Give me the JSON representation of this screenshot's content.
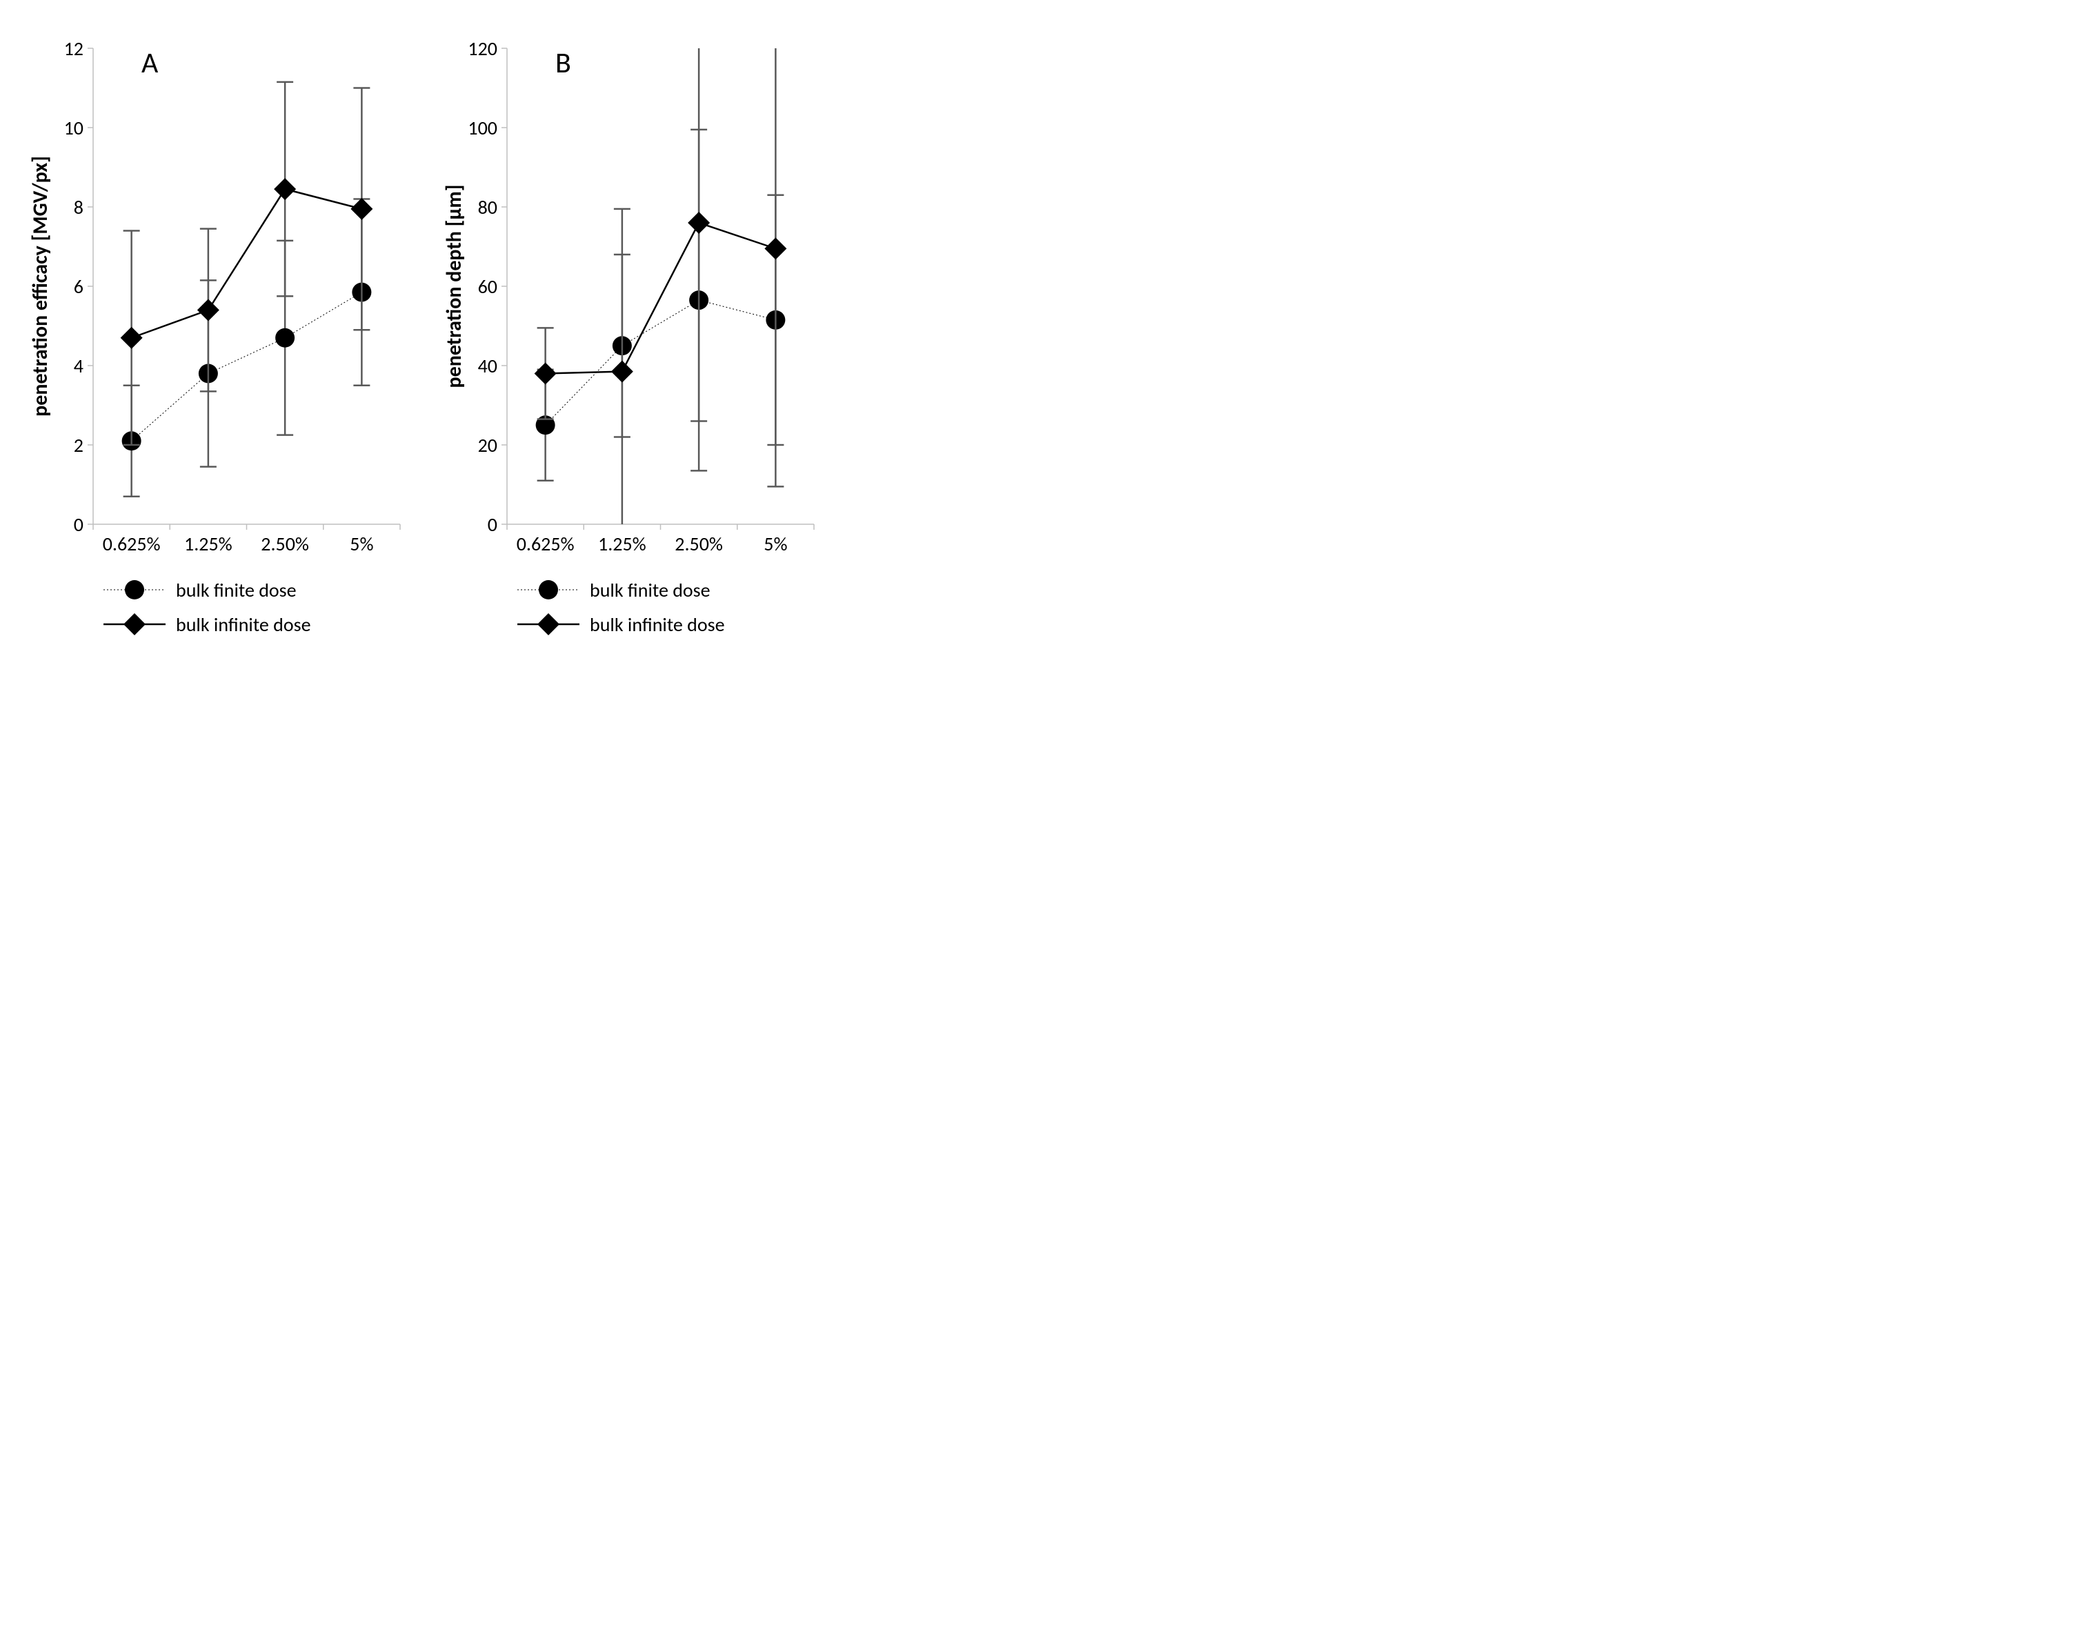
{
  "panel_letter_fontsize": 42,
  "axis_title_fontsize": 30,
  "tick_fontsize": 28,
  "legend_fontsize": 28,
  "background_color": "#ffffff",
  "axis_color": "#bfbfbf",
  "error_color": "#595959",
  "series": [
    {
      "name": "bulk finite dose",
      "color": "#000000",
      "marker": "circle",
      "marker_size": 14,
      "line_style": "dotted"
    },
    {
      "name": "bulk infinite dose",
      "color": "#000000",
      "marker": "diamond",
      "marker_size": 16,
      "line_style": "solid"
    }
  ],
  "categories": [
    "0.625%",
    "1.25%",
    "2.50%",
    "5%"
  ],
  "panels": [
    {
      "letter": "A",
      "ylabel": "penetration efficacy [MGV/px]",
      "ylim": [
        0,
        12
      ],
      "ytick_step": 2,
      "data": {
        "bulk finite dose": {
          "y": [
            2.1,
            3.8,
            4.7,
            5.85
          ],
          "err": [
            1.4,
            2.35,
            2.45,
            2.35
          ]
        },
        "bulk infinite dose": {
          "y": [
            4.7,
            5.4,
            8.45,
            7.95
          ],
          "err": [
            2.7,
            2.05,
            2.7,
            3.05
          ]
        }
      }
    },
    {
      "letter": "B",
      "ylabel": "penetration depth [µm]",
      "ylim": [
        0,
        120
      ],
      "ytick_step": 20,
      "data": {
        "bulk finite dose": {
          "y": [
            25,
            45,
            56.5,
            51.5
          ],
          "err": [
            14,
            23,
            43,
            31.5
          ]
        },
        "bulk infinite dose": {
          "y": [
            38,
            38.5,
            76,
            69.5
          ],
          "err": [
            11.5,
            41,
            50,
            60
          ]
        }
      }
    }
  ]
}
